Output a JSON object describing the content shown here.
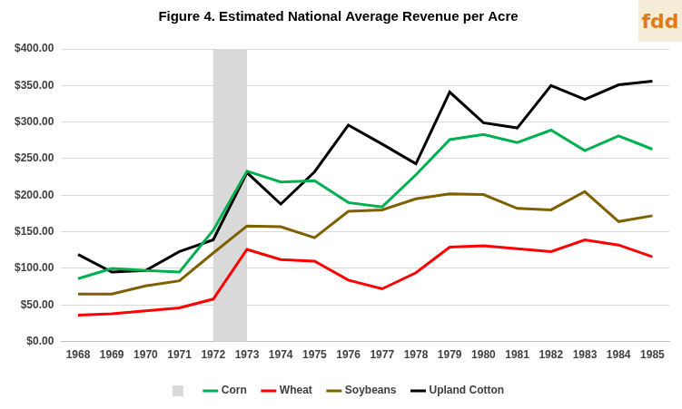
{
  "chart_data": {
    "type": "line",
    "title": "Figure 4. Estimated National Average Revenue per Acre",
    "logo": "fdd",
    "categories": [
      "1968",
      "1969",
      "1970",
      "1971",
      "1972",
      "1973",
      "1974",
      "1975",
      "1976",
      "1977",
      "1978",
      "1979",
      "1980",
      "1981",
      "1982",
      "1983",
      "1984",
      "1985"
    ],
    "series": [
      {
        "name": "Corn",
        "color": "#00b050",
        "values": [
          86,
          100,
          97,
          95,
          152,
          233,
          218,
          220,
          190,
          184,
          228,
          276,
          283,
          272,
          289,
          261,
          281,
          263
        ]
      },
      {
        "name": "Wheat",
        "color": "#ff0000",
        "values": [
          36,
          38,
          42,
          46,
          58,
          126,
          112,
          110,
          84,
          72,
          94,
          129,
          131,
          127,
          123,
          139,
          132,
          116
        ]
      },
      {
        "name": "Soybeans",
        "color": "#7f6000",
        "values": [
          65,
          65,
          76,
          83,
          121,
          158,
          157,
          142,
          178,
          180,
          195,
          202,
          201,
          182,
          180,
          205,
          164,
          172
        ]
      },
      {
        "name": "Upland Cotton",
        "color": "#000000",
        "values": [
          119,
          95,
          97,
          123,
          139,
          231,
          188,
          232,
          296,
          270,
          243,
          341,
          299,
          292,
          350,
          331,
          351,
          356
        ]
      }
    ],
    "shaded_region": {
      "from": "1972",
      "to": "1973",
      "color": "#d9d9d9"
    },
    "ylim": [
      0,
      400
    ],
    "yticks": [
      {
        "value": 0,
        "label": "$0.00"
      },
      {
        "value": 50,
        "label": "$50.00"
      },
      {
        "value": 100,
        "label": "$100.00"
      },
      {
        "value": 150,
        "label": "$150.00"
      },
      {
        "value": 200,
        "label": "$200.00"
      },
      {
        "value": 250,
        "label": "$250.00"
      },
      {
        "value": 300,
        "label": "$300.00"
      },
      {
        "value": 350,
        "label": "$350.00"
      },
      {
        "value": 400,
        "label": "$400.00"
      }
    ],
    "grid": true,
    "legend": "bottom",
    "marker": "none",
    "line_style": "solid"
  }
}
